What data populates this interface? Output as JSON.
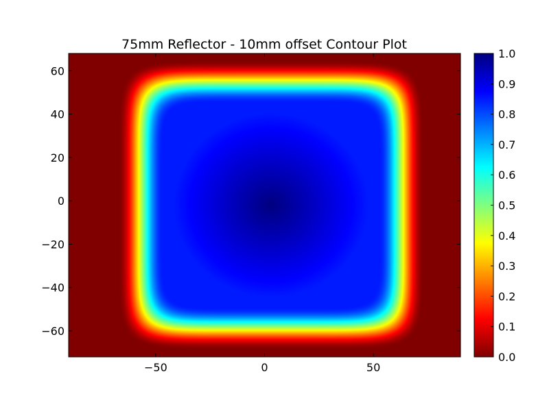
{
  "chart_data": {
    "type": "heatmap",
    "title": "75mm Reflector - 10mm offset Contour Plot",
    "xlabel": "",
    "ylabel": "",
    "xlim": [
      -90,
      90
    ],
    "ylim": [
      -72,
      68
    ],
    "x_ticks": [
      -50,
      0,
      50
    ],
    "x_tick_labels": [
      "−50",
      "0",
      "50"
    ],
    "y_ticks": [
      60,
      40,
      20,
      0,
      -20,
      -40,
      -60
    ],
    "y_tick_labels": [
      "60",
      "40",
      "20",
      "0",
      "−20",
      "−40",
      "−60"
    ],
    "colorbar": {
      "range": [
        0.0,
        1.0
      ],
      "ticks": [
        1.0,
        0.9,
        0.8,
        0.7,
        0.6,
        0.5,
        0.4,
        0.3,
        0.2,
        0.1,
        0.0
      ],
      "tick_labels": [
        "1.0",
        "0.9",
        "0.8",
        "0.7",
        "0.6",
        "0.5",
        "0.4",
        "0.3",
        "0.2",
        "0.1",
        "0.0"
      ],
      "colormap": "jet"
    },
    "field": {
      "shape": "rounded-square",
      "x_center": 3,
      "y_center": -2,
      "half_width_x": 60,
      "half_width_y": 57,
      "edge_width": 10,
      "peak_value": 1.0,
      "plateau_value": 0.85,
      "background_value": 0.0
    },
    "grid": false,
    "legend": "colorbar-right"
  }
}
